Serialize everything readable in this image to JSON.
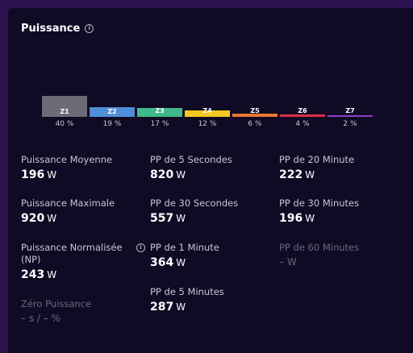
{
  "card": {
    "title": "Puissance"
  },
  "zones": [
    {
      "label": "Z1",
      "pct": "40 %",
      "color": "#6e6a78",
      "fraction": 0.4
    },
    {
      "label": "Z2",
      "pct": "19 %",
      "color": "#4f8fd8",
      "fraction": 0.19
    },
    {
      "label": "Z3",
      "pct": "17 %",
      "color": "#3fb98a",
      "fraction": 0.17
    },
    {
      "label": "Z4",
      "pct": "12 %",
      "color": "#f4c91f",
      "fraction": 0.12
    },
    {
      "label": "Z5",
      "pct": "6 %",
      "color": "#e8782e",
      "fraction": 0.06
    },
    {
      "label": "Z6",
      "pct": "4 %",
      "color": "#d9304a",
      "fraction": 0.04
    },
    {
      "label": "Z7",
      "pct": "2 %",
      "color": "#8a3fc9",
      "fraction": 0.02
    }
  ],
  "metrics": {
    "avg": {
      "label": "Puissance Moyenne",
      "value": "196",
      "unit": "W"
    },
    "max": {
      "label": "Puissance Maximale",
      "value": "920",
      "unit": "W"
    },
    "np": {
      "label": "Puissance Normalisée (NP)",
      "value": "243",
      "unit": "W"
    },
    "zero": {
      "label": "Zéro Puissance",
      "value": "– s / – %"
    },
    "pp5s": {
      "label": "PP de 5 Secondes",
      "value": "820",
      "unit": "W"
    },
    "pp30s": {
      "label": "PP de 30 Secondes",
      "value": "557",
      "unit": "W"
    },
    "pp1m": {
      "label": "PP de 1 Minute",
      "value": "364",
      "unit": "W"
    },
    "pp5m": {
      "label": "PP de 5 Minutes",
      "value": "287",
      "unit": "W"
    },
    "pp20m": {
      "label": "PP de 20 Minute",
      "value": "222",
      "unit": "W"
    },
    "pp30m": {
      "label": "PP de 30 Minutes",
      "value": "196",
      "unit": "W"
    },
    "pp60m": {
      "label": "PP de 60 Minutes",
      "value": "– W"
    }
  },
  "colors": {
    "background": "#110a24",
    "frame": "#2a1250"
  }
}
